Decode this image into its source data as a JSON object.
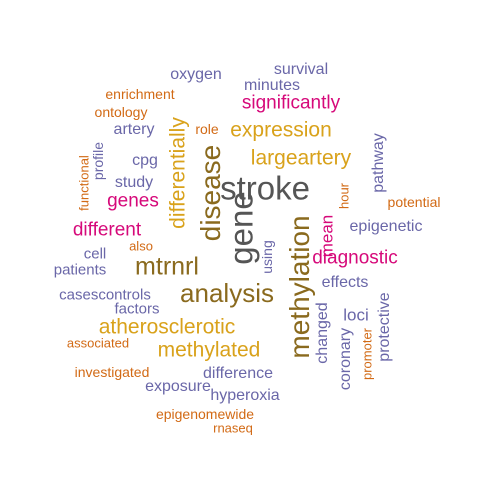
{
  "palette": {
    "gray": "#555555",
    "brown": "#8a6a1e",
    "gold": "#d9a21b",
    "magenta": "#d6097a",
    "purple": "#6a67a8",
    "orange": "#d26a15"
  },
  "words": [
    {
      "text": "stroke",
      "color": "gray"
    },
    {
      "text": "gene",
      "color": "gray"
    },
    {
      "text": "disease",
      "color": "brown"
    },
    {
      "text": "methylation",
      "color": "brown"
    },
    {
      "text": "analysis",
      "color": "brown"
    },
    {
      "text": "mtrnrl",
      "color": "brown"
    },
    {
      "text": "differentially",
      "color": "gold"
    },
    {
      "text": "expression",
      "color": "gold"
    },
    {
      "text": "largeartery",
      "color": "gold"
    },
    {
      "text": "atherosclerotic",
      "color": "gold"
    },
    {
      "text": "methylated",
      "color": "gold"
    },
    {
      "text": "significantly",
      "color": "magenta"
    },
    {
      "text": "genes",
      "color": "magenta"
    },
    {
      "text": "different",
      "color": "magenta"
    },
    {
      "text": "mean",
      "color": "magenta"
    },
    {
      "text": "diagnostic",
      "color": "magenta"
    },
    {
      "text": "survival",
      "color": "purple"
    },
    {
      "text": "oxygen",
      "color": "purple"
    },
    {
      "text": "minutes",
      "color": "purple"
    },
    {
      "text": "artery",
      "color": "purple"
    },
    {
      "text": "cpg",
      "color": "purple"
    },
    {
      "text": "study",
      "color": "purple"
    },
    {
      "text": "profile",
      "color": "purple"
    },
    {
      "text": "pathway",
      "color": "purple"
    },
    {
      "text": "epigenetic",
      "color": "purple"
    },
    {
      "text": "cell",
      "color": "purple"
    },
    {
      "text": "patients",
      "color": "purple"
    },
    {
      "text": "using",
      "color": "purple"
    },
    {
      "text": "casescontrols",
      "color": "purple"
    },
    {
      "text": "factors",
      "color": "purple"
    },
    {
      "text": "effects",
      "color": "purple"
    },
    {
      "text": "loci",
      "color": "purple"
    },
    {
      "text": "changed",
      "color": "purple"
    },
    {
      "text": "coronary",
      "color": "purple"
    },
    {
      "text": "protective",
      "color": "purple"
    },
    {
      "text": "difference",
      "color": "purple"
    },
    {
      "text": "exposure",
      "color": "purple"
    },
    {
      "text": "hyperoxia",
      "color": "purple"
    },
    {
      "text": "enrichment",
      "color": "orange"
    },
    {
      "text": "ontology",
      "color": "orange"
    },
    {
      "text": "role",
      "color": "orange"
    },
    {
      "text": "functional",
      "color": "orange"
    },
    {
      "text": "potential",
      "color": "orange"
    },
    {
      "text": "hour",
      "color": "orange"
    },
    {
      "text": "also",
      "color": "orange"
    },
    {
      "text": "associated",
      "color": "orange"
    },
    {
      "text": "investigated",
      "color": "orange"
    },
    {
      "text": "promoter",
      "color": "orange"
    },
    {
      "text": "epigenomewide",
      "color": "orange"
    },
    {
      "text": "rnaseq",
      "color": "orange"
    }
  ]
}
